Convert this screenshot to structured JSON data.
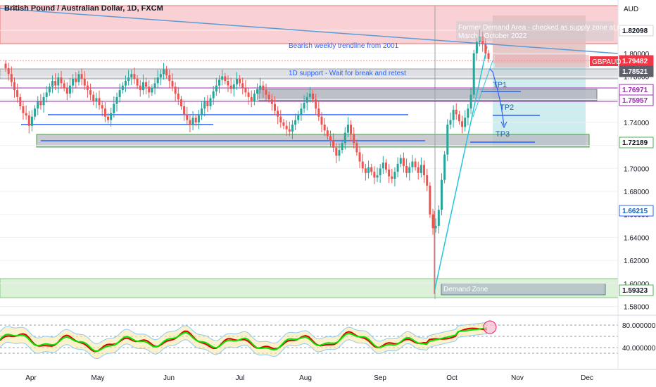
{
  "header": {
    "title": "British Pound / Australian Dollar, 1D, FXCM",
    "currency": "AUD",
    "symbol_badge": "GBPAUD"
  },
  "annotations": {
    "trendline_label": "Bearish weekly trendline from 2001",
    "support_label": "1D support - Wait for break and retest",
    "supply_label_1": "Former Demand Area - checked as supply zone at mid",
    "supply_label_2": "March - October 2022",
    "demand_label": "Demand Zone",
    "tp1": "TP1",
    "tp2": "TP2",
    "tp3": "TP3"
  },
  "colors": {
    "bull": "#26a69a",
    "bear": "#ef5350",
    "supply_zone": "#f8c9cc",
    "demand_zone": "#d8efd4",
    "grey_zone": "#b2b5be",
    "level_blue": "#2962ff",
    "level_purple": "#9c27b0",
    "rsi_fast": "#00e600",
    "rsi_slow": "#e00000",
    "price_badge": "#f23645"
  },
  "chart_data": {
    "type": "candlestick",
    "title": "British Pound / Australian Dollar, 1D, FXCM",
    "ylabel": "AUD",
    "ylim": [
      1.572,
      1.845
    ],
    "y_ticks": [
      1.58,
      1.6,
      1.62,
      1.64,
      1.66,
      1.68,
      1.7,
      1.72,
      1.74,
      1.76,
      1.78,
      1.8,
      1.82
    ],
    "x_labels": [
      "Apr",
      "May",
      "Jun",
      "Jul",
      "Aug",
      "Sep",
      "Oct",
      "Nov",
      "Dec"
    ],
    "price_labels": [
      {
        "value": "1.82098",
        "style": "neutral"
      },
      {
        "value": "1.79482",
        "style": "current"
      },
      {
        "value": "1.78521",
        "style": "grey"
      },
      {
        "value": "1.76971",
        "style": "purple"
      },
      {
        "value": "1.75957",
        "style": "purple"
      },
      {
        "value": "1.72189",
        "style": "green"
      },
      {
        "value": "1.66215",
        "style": "blue"
      },
      {
        "value": "1.59323",
        "style": "green"
      }
    ],
    "key_levels": [
      {
        "name": "1D support",
        "value": 1.7852
      },
      {
        "name": "Resistance zone",
        "value": 1.7697
      },
      {
        "name": "Resistance zone low",
        "value": 1.7596
      },
      {
        "name": "TP1",
        "value": 1.7697
      },
      {
        "name": "TP2",
        "value": 1.7465
      },
      {
        "name": "TP3",
        "value": 1.7219
      },
      {
        "name": "Demand zone",
        "value": 1.5932
      }
    ],
    "candle_closes": [
      1.787,
      1.782,
      1.775,
      1.768,
      1.762,
      1.754,
      1.748,
      1.746,
      1.737,
      1.745,
      1.752,
      1.758,
      1.755,
      1.762,
      1.766,
      1.771,
      1.776,
      1.772,
      1.779,
      1.774,
      1.77,
      1.765,
      1.772,
      1.778,
      1.775,
      1.782,
      1.778,
      1.772,
      1.768,
      1.764,
      1.758,
      1.761,
      1.755,
      1.752,
      1.745,
      1.742,
      1.748,
      1.756,
      1.762,
      1.768,
      1.772,
      1.776,
      1.779,
      1.782,
      1.778,
      1.772,
      1.768,
      1.775,
      1.771,
      1.766,
      1.77,
      1.774,
      1.779,
      1.782,
      1.786,
      1.781,
      1.776,
      1.771,
      1.765,
      1.76,
      1.754,
      1.747,
      1.742,
      1.738,
      1.744,
      1.74,
      1.746,
      1.752,
      1.758,
      1.754,
      1.761,
      1.767,
      1.772,
      1.777,
      1.78,
      1.776,
      1.772,
      1.769,
      1.773,
      1.778,
      1.774,
      1.77,
      1.766,
      1.762,
      1.758,
      1.765,
      1.769,
      1.772,
      1.768,
      1.764,
      1.76,
      1.756,
      1.75,
      1.745,
      1.74,
      1.737,
      1.734,
      1.732,
      1.738,
      1.742,
      1.747,
      1.752,
      1.757,
      1.762,
      1.765,
      1.76,
      1.752,
      1.745,
      1.738,
      1.733,
      1.728,
      1.724,
      1.718,
      1.711,
      1.716,
      1.722,
      1.731,
      1.738,
      1.73,
      1.722,
      1.714,
      1.706,
      1.7,
      1.696,
      1.701,
      1.697,
      1.692,
      1.694,
      1.7,
      1.705,
      1.699,
      1.693,
      1.691,
      1.697,
      1.704,
      1.709,
      1.702,
      1.696,
      1.701,
      1.706,
      1.701,
      1.696,
      1.703,
      1.694,
      1.685,
      1.66,
      1.648,
      1.65,
      1.664,
      1.69,
      1.712,
      1.738,
      1.742,
      1.751,
      1.747,
      1.741,
      1.736,
      1.744,
      1.752,
      1.764,
      1.8,
      1.81,
      1.815,
      1.808,
      1.8,
      1.795
    ],
    "rsi": {
      "name": "RSI",
      "y_ticks": [
        40,
        80
      ],
      "tick_labels": [
        "40.000000",
        "80.000000"
      ],
      "ylim": [
        20,
        90
      ],
      "last_value": 75
    }
  }
}
